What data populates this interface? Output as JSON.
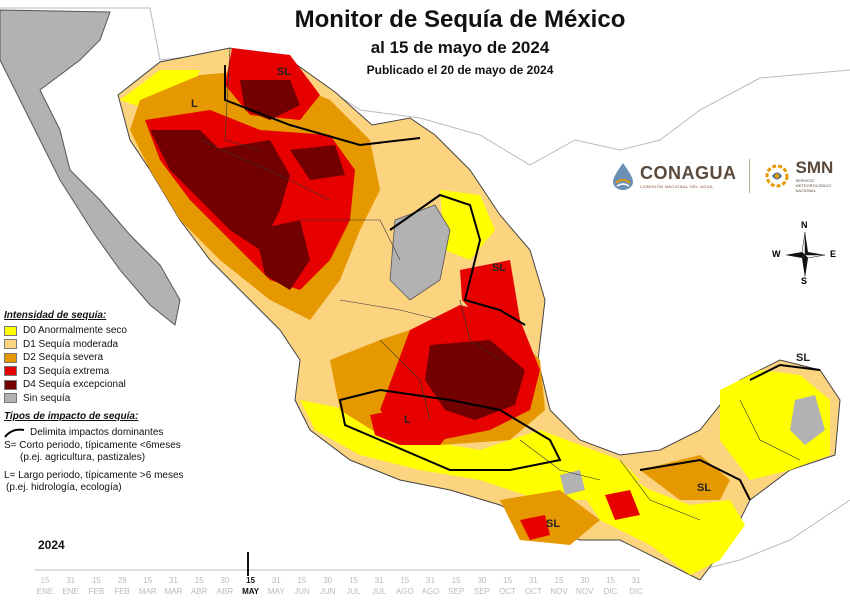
{
  "title": {
    "main": "Monitor de Sequía de México",
    "date": "al 15 de mayo de 2024",
    "published": "Publicado el 20 de mayo de 2024"
  },
  "legend": {
    "intensity_heading": "Intensidad de sequía:",
    "categories": [
      {
        "code": "D0",
        "label": "D0 Anormalmente seco",
        "color": "#ffff00"
      },
      {
        "code": "D1",
        "label": "D1 Sequía moderada",
        "color": "#fcd37f"
      },
      {
        "code": "D2",
        "label": "D2 Sequía severa",
        "color": "#e69800"
      },
      {
        "code": "D3",
        "label": "D3 Sequía extrema",
        "color": "#e60000"
      },
      {
        "code": "D4",
        "label": "D4 Sequía excepcional",
        "color": "#730000"
      },
      {
        "code": "none",
        "label": "Sin sequía",
        "color": "#b2b2b2"
      }
    ],
    "impact_heading": "Tipos de impacto de sequía:",
    "impact_line": "Delimita impactos dominantes",
    "short_term": "S= Corto periodo, típicamente <6meses",
    "short_term_examples": "(p.ej. agricultura, pastizales)",
    "long_term": "L= Largo periodo, típicamente >6 meses",
    "long_term_examples": "(p.ej. hidrología, ecología)"
  },
  "logos": {
    "conagua": "CONAGUA",
    "conagua_sub": "COMISIÓN NACIONAL DEL AGUA",
    "smn": "SMN",
    "smn_sub1": "SERVICIO",
    "smn_sub2": "METEOROLÓGICO",
    "smn_sub3": "NACIONAL"
  },
  "compass": {
    "n": "N",
    "s": "S",
    "e": "E",
    "w": "W"
  },
  "map_labels": [
    "SL",
    "L",
    "SL",
    "L",
    "SL",
    "SL",
    "SL"
  ],
  "timeline": {
    "year": "2024",
    "dates": [
      "15",
      "31",
      "15",
      "29",
      "15",
      "31",
      "15",
      "30",
      "15",
      "31",
      "15",
      "30",
      "15",
      "31",
      "15",
      "31",
      "15",
      "30",
      "15",
      "31",
      "15",
      "30",
      "15",
      "31"
    ],
    "months": [
      "ENE",
      "ENE",
      "FEB",
      "FEB",
      "MAR",
      "MAR",
      "ABR",
      "ABR",
      "MAY",
      "MAY",
      "JUN",
      "JUN",
      "JUL",
      "JUL",
      "AGO",
      "AGO",
      "SEP",
      "SEP",
      "OCT",
      "OCT",
      "NOV",
      "NOV",
      "DIC",
      "DIC"
    ],
    "current_index": 8
  }
}
